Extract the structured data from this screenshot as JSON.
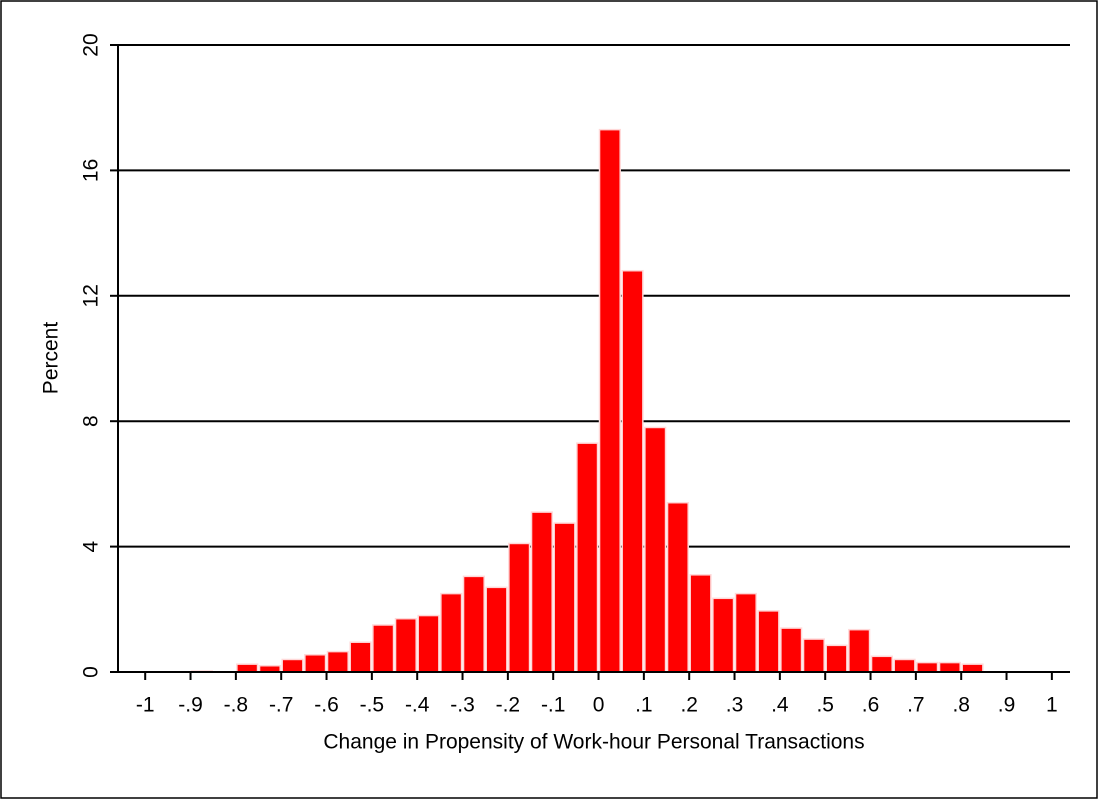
{
  "chart_data": {
    "type": "histogram",
    "x_label": "Change in Propensity of Work-hour Personal Transactions",
    "y_label": "Percent",
    "color": "#ff0000",
    "bins": [
      -1,
      -0.95,
      -0.9,
      -0.85,
      -0.8,
      -0.75,
      -0.7,
      -0.65,
      -0.6,
      -0.55,
      -0.5,
      -0.45,
      -0.4,
      -0.35,
      -0.3,
      -0.25,
      -0.2,
      -0.15,
      -0.1,
      -0.05,
      0,
      0.05,
      0.1,
      0.15,
      0.2,
      0.25,
      0.3,
      0.35,
      0.4,
      0.45,
      0.5,
      0.55,
      0.6,
      0.65,
      0.7,
      0.75,
      0.8,
      0.85,
      0.9,
      0.95,
      1
    ],
    "values": [
      0,
      0,
      0.03,
      0,
      0.25,
      0.2,
      0.4,
      0.55,
      0.65,
      0.95,
      1.5,
      1.7,
      1.8,
      2.5,
      3.05,
      2.7,
      4.1,
      5.1,
      4.75,
      7.3,
      17.3,
      12.8,
      7.8,
      5.4,
      3.1,
      2.35,
      2.5,
      1.95,
      1.4,
      1.05,
      0.85,
      1.35,
      0.5,
      0.4,
      0.3,
      0.3,
      0.25,
      0,
      0,
      0
    ],
    "xlim": [
      -1.06,
      1.04
    ],
    "xticks": [
      -1,
      {
        "value": -0.9,
        "label": "-.9"
      },
      {
        "value": -0.8,
        "label": "-.8"
      },
      {
        "value": -0.7,
        "label": "-.7"
      },
      {
        "value": -0.6,
        "label": "-.6"
      },
      {
        "value": -0.5,
        "label": "-.5"
      },
      {
        "value": -0.4,
        "label": "-.4"
      },
      {
        "value": -0.3,
        "label": "-.3"
      },
      {
        "value": -0.2,
        "label": "-.2"
      },
      {
        "value": -0.1,
        "label": "-.1"
      },
      0,
      {
        "value": 0.1,
        "label": ".1"
      },
      {
        "value": 0.2,
        "label": ".2"
      },
      {
        "value": 0.3,
        "label": ".3"
      },
      {
        "value": 0.4,
        "label": ".4"
      },
      {
        "value": 0.5,
        "label": ".5"
      },
      {
        "value": 0.6,
        "label": ".6"
      },
      {
        "value": 0.7,
        "label": ".7"
      },
      {
        "value": 0.8,
        "label": ".8"
      },
      {
        "value": 0.9,
        "label": ".9"
      },
      1
    ],
    "ylim": [
      0,
      20
    ],
    "yticks": [
      0,
      4,
      8,
      12,
      16,
      20
    ],
    "grid": true
  }
}
